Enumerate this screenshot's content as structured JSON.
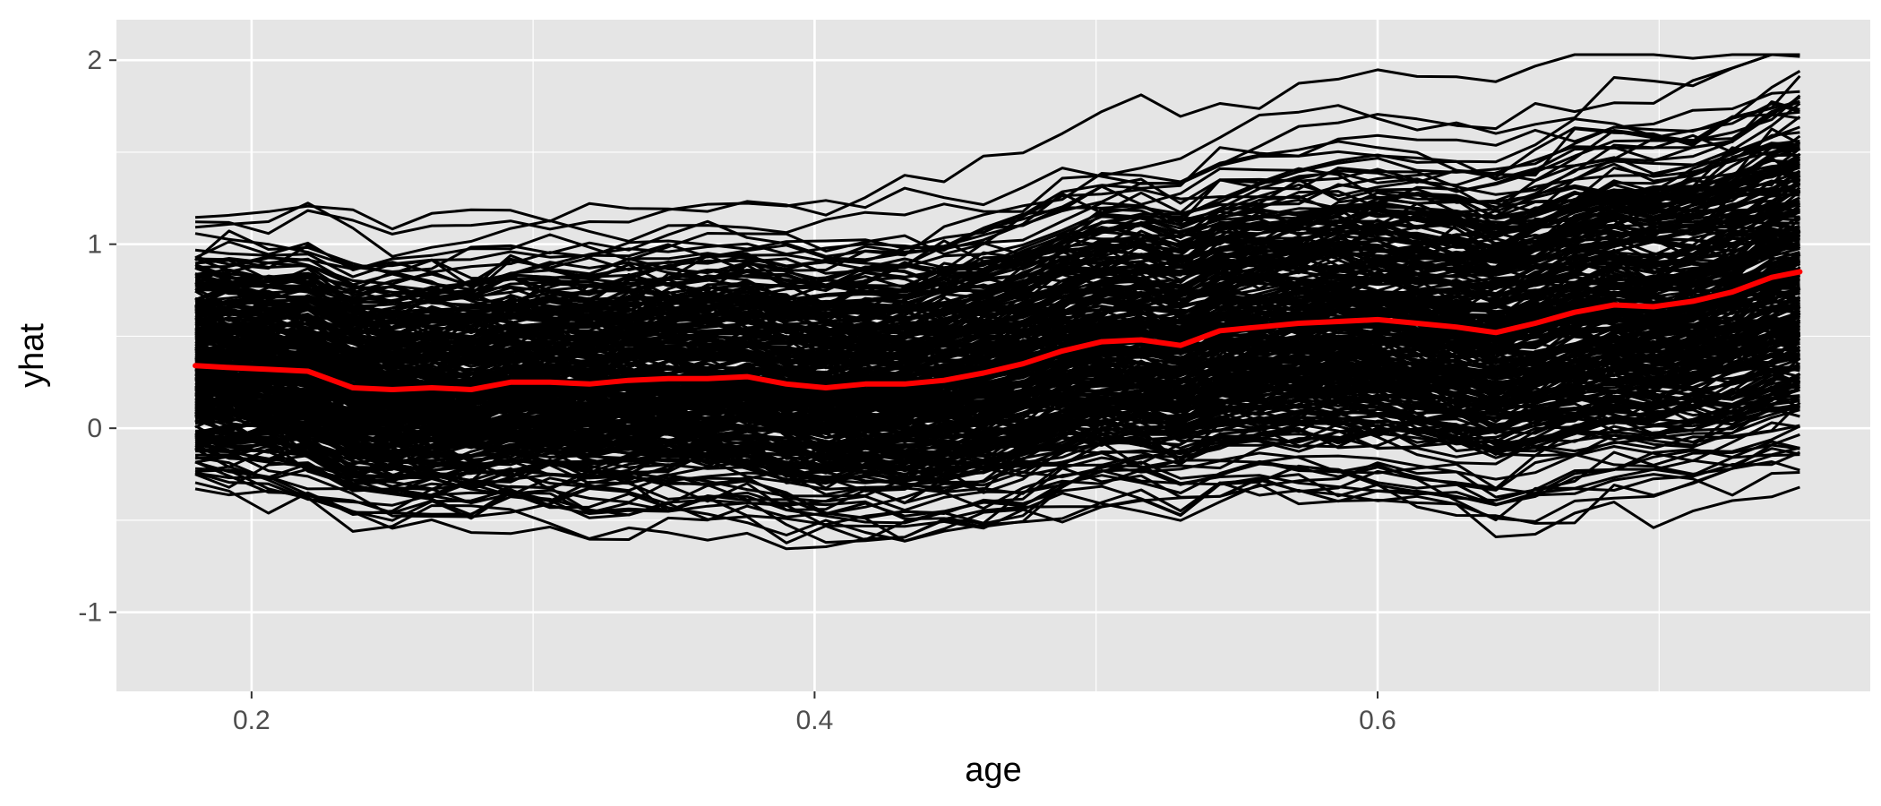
{
  "chart_data": {
    "type": "line",
    "title": "",
    "xlabel": "age",
    "ylabel": "yhat",
    "xlim": [
      0.152,
      0.775
    ],
    "ylim": [
      -1.43,
      2.22
    ],
    "x_ticks": [
      0.2,
      0.4,
      0.6
    ],
    "x_tick_labels": [
      "0.2",
      "0.4",
      "0.6"
    ],
    "y_ticks": [
      -1,
      0,
      1,
      2
    ],
    "y_tick_labels": [
      "-1",
      "0",
      "1",
      "2"
    ],
    "grid": true,
    "legend": "none",
    "background": "#e5e5e5",
    "grid_color": "#ffffff",
    "ice_line_color": "#000000",
    "mean_line_color": "#ff0000",
    "ice_lines": {
      "description": "individual conditional expectation curves, one per observation",
      "x_range": [
        0.18,
        0.75
      ],
      "start_range": [
        -0.7,
        1.05
      ],
      "end_range": [
        -0.7,
        1.98
      ]
    },
    "series": [
      {
        "x": [
          0.18,
          0.192,
          0.206,
          0.22,
          0.236,
          0.25,
          0.264,
          0.278,
          0.292,
          0.306,
          0.32,
          0.334,
          0.348,
          0.362,
          0.376,
          0.39,
          0.404,
          0.418,
          0.432,
          0.446,
          0.46,
          0.474,
          0.488,
          0.502,
          0.516,
          0.53,
          0.544,
          0.558,
          0.572,
          0.586,
          0.6,
          0.614,
          0.628,
          0.642,
          0.656,
          0.67,
          0.684,
          0.698,
          0.712,
          0.726,
          0.74,
          0.75
        ],
        "values": [
          0.34,
          0.33,
          0.32,
          0.31,
          0.22,
          0.21,
          0.22,
          0.21,
          0.25,
          0.25,
          0.24,
          0.26,
          0.27,
          0.27,
          0.28,
          0.24,
          0.22,
          0.24,
          0.24,
          0.26,
          0.3,
          0.35,
          0.42,
          0.47,
          0.48,
          0.45,
          0.53,
          0.55,
          0.57,
          0.58,
          0.59,
          0.57,
          0.55,
          0.52,
          0.57,
          0.63,
          0.67,
          0.66,
          0.69,
          0.74,
          0.82,
          0.85
        ]
      }
    ]
  }
}
